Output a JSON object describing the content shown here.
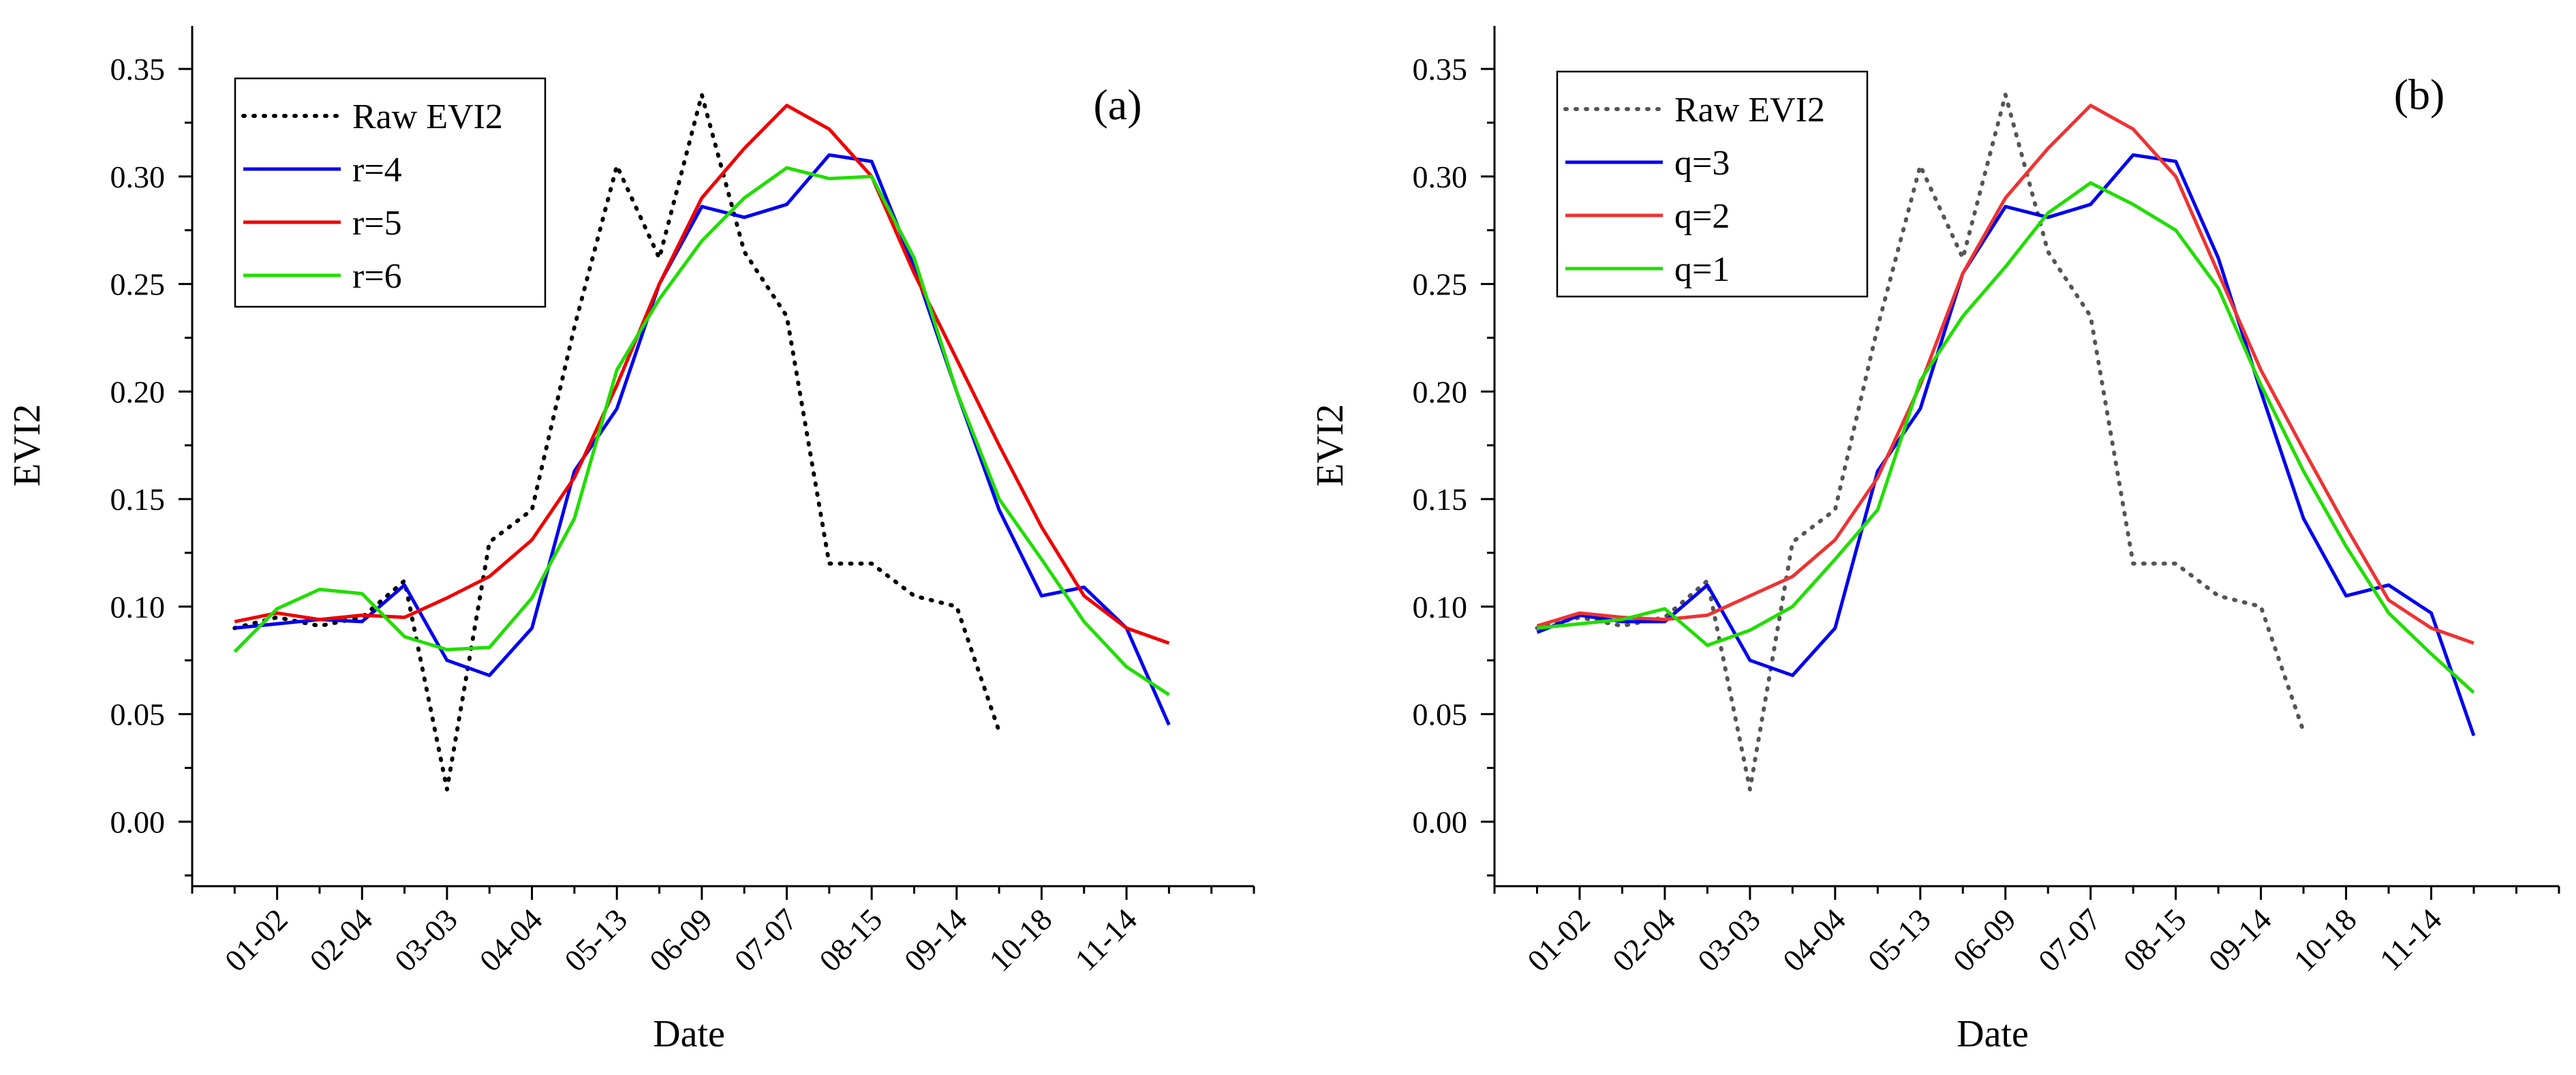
{
  "chart_data": [
    {
      "type": "line",
      "panel_label": "(a)",
      "xlabel": "Date",
      "ylabel": "EVI2",
      "ylim": [
        -0.03,
        0.37
      ],
      "yticks": [
        "0.00",
        "0.05",
        "0.10",
        "0.15",
        "0.20",
        "0.25",
        "0.30",
        "0.35"
      ],
      "xlim": [
        0,
        25
      ],
      "tick_labels": [
        "01-02",
        "02-04",
        "03-03",
        "04-04",
        "05-13",
        "06-09",
        "07-07",
        "08-15",
        "09-14",
        "10-18",
        "11-14"
      ],
      "x": [
        1,
        2,
        3,
        4,
        5,
        6,
        7,
        8,
        9,
        10,
        11,
        12,
        13,
        14,
        15,
        16,
        17,
        18,
        19,
        20,
        21,
        22,
        23,
        24
      ],
      "legend_position": "top-left",
      "series": [
        {
          "name": "Raw EVI2",
          "color": "#000000",
          "style": "dotted",
          "values": [
            0.09,
            0.095,
            0.091,
            0.095,
            0.112,
            0.015,
            0.13,
            0.145,
            0.23,
            0.305,
            0.262,
            0.338,
            0.265,
            0.235,
            0.12,
            0.12,
            0.105,
            0.1,
            0.042,
            null,
            null,
            null,
            null,
            null
          ]
        },
        {
          "name": "r=4",
          "color": "#0000ee",
          "style": "solid",
          "values": [
            0.09,
            0.092,
            0.094,
            0.093,
            0.11,
            0.075,
            0.068,
            0.09,
            0.163,
            0.192,
            0.25,
            0.286,
            0.281,
            0.287,
            0.31,
            0.307,
            0.258,
            0.2,
            0.145,
            0.105,
            0.109,
            0.09,
            0.045,
            null
          ]
        },
        {
          "name": "r=5",
          "color": "#ee0000",
          "style": "solid",
          "values": [
            0.093,
            0.097,
            0.094,
            0.096,
            0.095,
            0.104,
            0.114,
            0.131,
            0.16,
            0.203,
            0.25,
            0.29,
            0.313,
            0.333,
            0.322,
            0.3,
            0.255,
            0.215,
            0.175,
            0.137,
            0.105,
            0.09,
            0.083,
            null
          ]
        },
        {
          "name": "r=6",
          "color": "#22dd00",
          "style": "solid",
          "values": [
            0.079,
            0.099,
            0.108,
            0.106,
            0.086,
            0.08,
            0.081,
            0.104,
            0.141,
            0.21,
            0.243,
            0.27,
            0.29,
            0.304,
            0.299,
            0.3,
            0.262,
            0.2,
            0.15,
            0.122,
            0.093,
            0.072,
            0.059,
            null
          ]
        }
      ]
    },
    {
      "type": "line",
      "panel_label": "(b)",
      "xlabel": "Date",
      "ylabel": "EVI2",
      "ylim": [
        -0.03,
        0.37
      ],
      "yticks": [
        "0.00",
        "0.05",
        "0.10",
        "0.15",
        "0.20",
        "0.25",
        "0.30",
        "0.35"
      ],
      "xlim": [
        0,
        25
      ],
      "tick_labels": [
        "01-02",
        "02-04",
        "03-03",
        "04-04",
        "05-13",
        "06-09",
        "07-07",
        "08-15",
        "09-14",
        "10-18",
        "11-14"
      ],
      "x": [
        1,
        2,
        3,
        4,
        5,
        6,
        7,
        8,
        9,
        10,
        11,
        12,
        13,
        14,
        15,
        16,
        17,
        18,
        19,
        20,
        21,
        22,
        23,
        24
      ],
      "legend_position": "top-left",
      "series": [
        {
          "name": "Raw EVI2",
          "color": "#555555",
          "style": "dotted",
          "values": [
            0.09,
            0.095,
            0.091,
            0.095,
            0.112,
            0.015,
            0.13,
            0.145,
            0.23,
            0.305,
            0.262,
            0.338,
            0.265,
            0.235,
            0.12,
            0.12,
            0.105,
            0.1,
            0.042,
            null,
            null,
            null,
            null,
            null
          ]
        },
        {
          "name": "q=3",
          "color": "#0000ee",
          "style": "solid",
          "values": [
            0.088,
            0.096,
            0.093,
            0.093,
            0.11,
            0.075,
            0.068,
            0.09,
            0.163,
            0.192,
            0.255,
            0.286,
            0.281,
            0.287,
            0.31,
            0.307,
            0.262,
            0.2,
            0.141,
            0.105,
            0.11,
            0.097,
            0.04,
            null
          ]
        },
        {
          "name": "q=2",
          "color": "#ee3333",
          "style": "solid",
          "values": [
            0.091,
            0.097,
            0.095,
            0.094,
            0.096,
            0.105,
            0.114,
            0.131,
            0.16,
            0.203,
            0.255,
            0.29,
            0.313,
            0.333,
            0.322,
            0.3,
            0.255,
            0.21,
            0.173,
            0.137,
            0.103,
            0.09,
            0.083,
            null
          ]
        },
        {
          "name": "q=1",
          "color": "#22dd00",
          "style": "solid",
          "values": [
            0.09,
            0.092,
            0.094,
            0.099,
            0.082,
            0.089,
            0.1,
            0.122,
            0.145,
            0.205,
            0.235,
            0.258,
            0.283,
            0.297,
            0.287,
            0.275,
            0.248,
            0.203,
            0.163,
            0.128,
            0.097,
            0.078,
            0.06,
            null
          ]
        }
      ]
    }
  ]
}
